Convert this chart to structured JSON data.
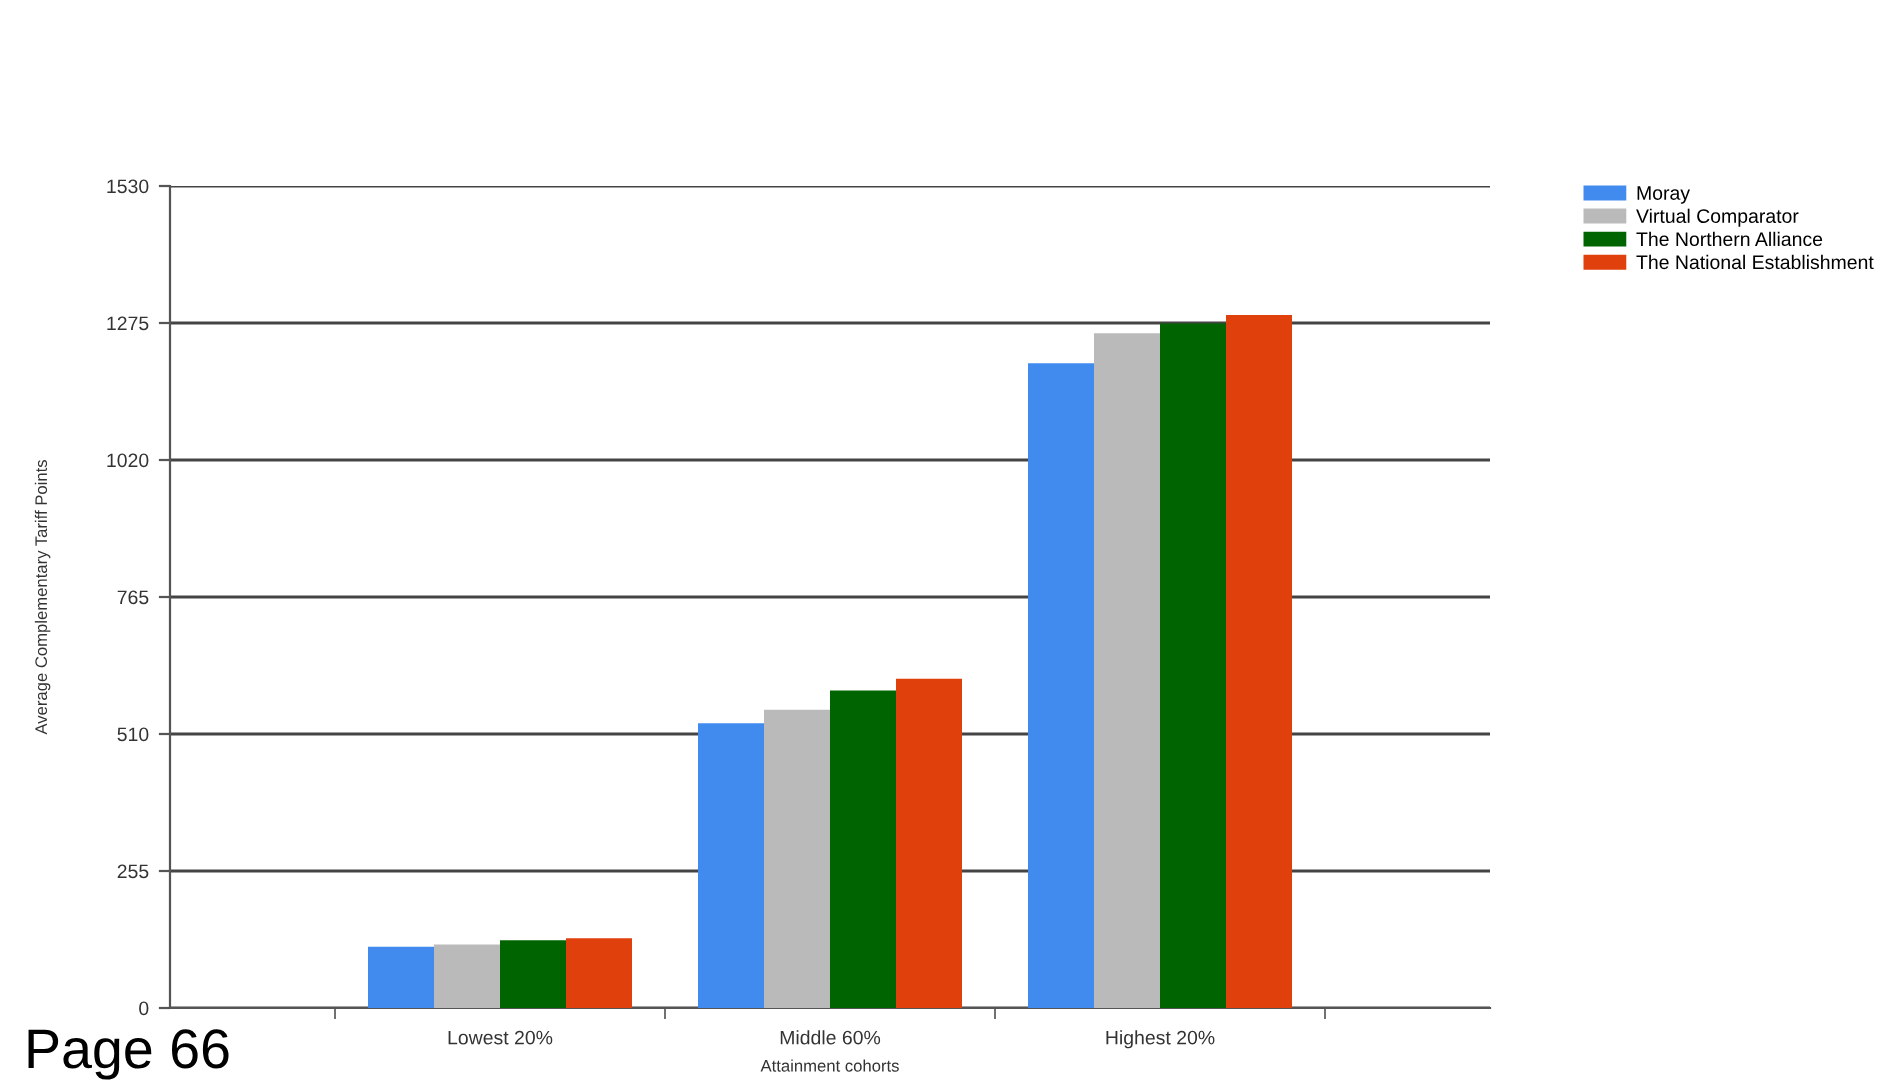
{
  "chart_data": {
    "type": "bar",
    "xlabel": "Attainment cohorts",
    "ylabel": "Average Complementary Tariff Points",
    "categories": [
      "Lowest 20%",
      "Middle 60%",
      "Highest 20%"
    ],
    "series": [
      {
        "name": "Moray",
        "color": "#428bee",
        "values": [
          114,
          530,
          1200
        ]
      },
      {
        "name": "Virtual Comparator",
        "color": "#bababa",
        "values": [
          118,
          555,
          1256
        ]
      },
      {
        "name": "The Northern Alliance",
        "color": "#006400",
        "values": [
          126,
          591,
          1274
        ]
      },
      {
        "name": "The National Establishment",
        "color": "#e0400b",
        "values": [
          130,
          613,
          1290
        ]
      }
    ],
    "ylim": [
      0,
      1530
    ],
    "yticks": [
      0,
      255,
      510,
      765,
      1020,
      1275,
      1530
    ],
    "grid": "y",
    "legend": "top right",
    "annotations": [
      "Page 66"
    ]
  }
}
